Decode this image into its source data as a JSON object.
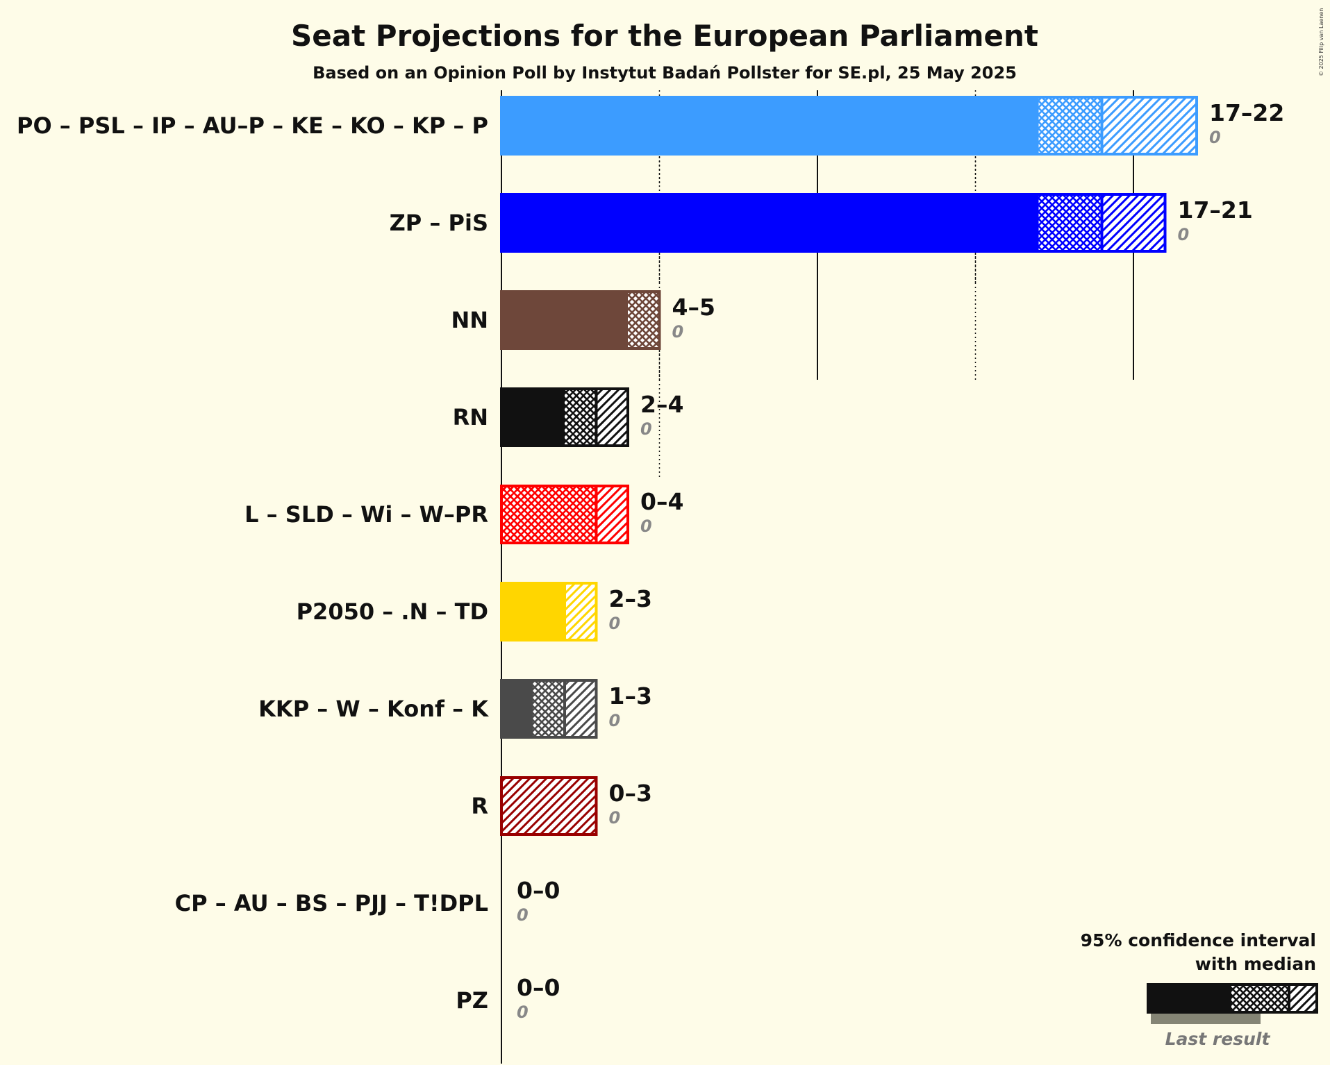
{
  "copyright": "© 2025 Filip van Laenen",
  "chart_data": {
    "type": "bar",
    "orientation": "horizontal",
    "title": "Seat Projections for the European Parliament",
    "subtitle": "Based on an Opinion Poll by Instytut Badań Pollster for SE.pl, 25 May 2025",
    "xlim": [
      0,
      22
    ],
    "grid": {
      "solid_every": 10,
      "dotted_every": 5
    },
    "series": [
      {
        "party": "PO – PSL – IP – AU–P – KE – KO – KP – P",
        "low": 17,
        "median": 19,
        "high": 22,
        "range_label": "17–22",
        "last_result": 0,
        "last_label": "0",
        "color": "#3c9cff"
      },
      {
        "party": "ZP – PiS",
        "low": 17,
        "median": 19,
        "high": 21,
        "range_label": "17–21",
        "last_result": 0,
        "last_label": "0",
        "color": "#0000ff"
      },
      {
        "party": "NN",
        "low": 4,
        "median": 5,
        "high": 5,
        "range_label": "4–5",
        "last_result": 0,
        "last_label": "0",
        "color": "#6e473a"
      },
      {
        "party": "RN",
        "low": 2,
        "median": 3,
        "high": 4,
        "range_label": "2–4",
        "last_result": 0,
        "last_label": "0",
        "color": "#111111"
      },
      {
        "party": "L – SLD – Wi – W–PR",
        "low": 0,
        "median": 3,
        "high": 4,
        "range_label": "0–4",
        "last_result": 0,
        "last_label": "0",
        "color": "#ff0000"
      },
      {
        "party": "P2050 – .N – TD",
        "low": 2,
        "median": 2,
        "high": 3,
        "range_label": "2–3",
        "last_result": 0,
        "last_label": "0",
        "color": "#ffd600"
      },
      {
        "party": "KKP – W – Konf – K",
        "low": 1,
        "median": 2,
        "high": 3,
        "range_label": "1–3",
        "last_result": 0,
        "last_label": "0",
        "color": "#4a4a4a"
      },
      {
        "party": "R",
        "low": 0,
        "median": 0,
        "high": 3,
        "range_label": "0–3",
        "last_result": 0,
        "last_label": "0",
        "color": "#990000"
      },
      {
        "party": "CP – AU – BS – PJJ – T!DPL",
        "low": 0,
        "median": 0,
        "high": 0,
        "range_label": "0–0",
        "last_result": 0,
        "last_label": "0",
        "color": "#888888"
      },
      {
        "party": "PZ",
        "low": 0,
        "median": 0,
        "high": 0,
        "range_label": "0–0",
        "last_result": 0,
        "last_label": "0",
        "color": "#888888"
      }
    ],
    "legend": {
      "line1": "95% confidence interval",
      "line2": "with median",
      "last_result": "Last result",
      "placement": "bottom-right"
    }
  }
}
